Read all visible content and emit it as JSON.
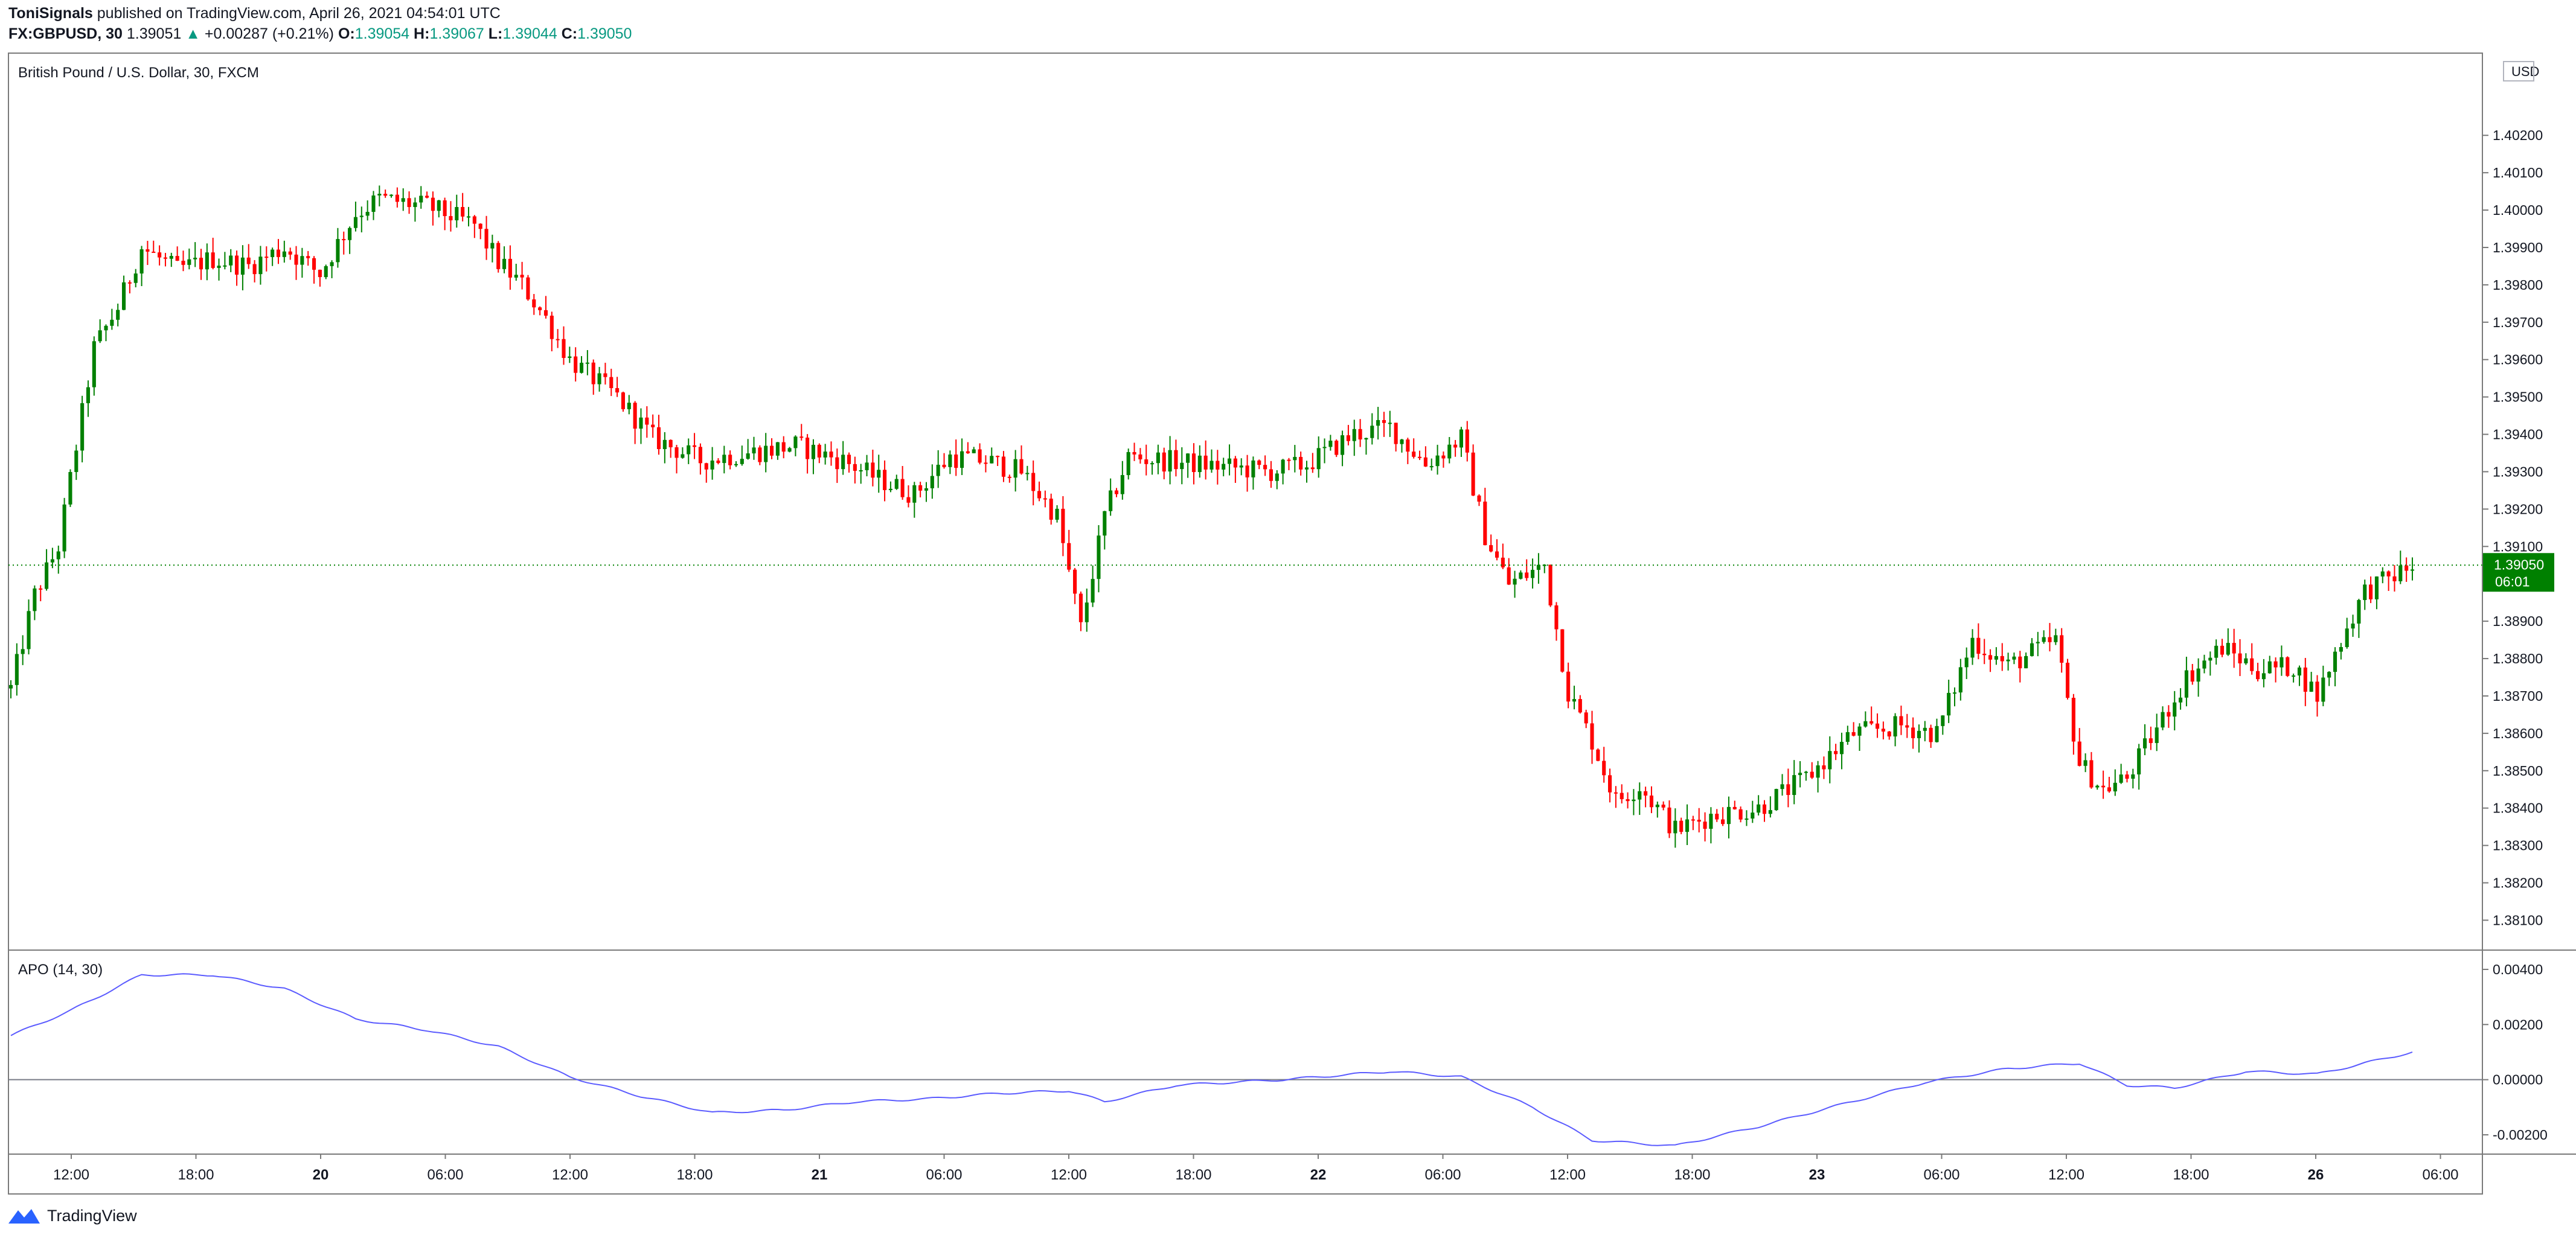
{
  "header": {
    "author": "ToniSignals",
    "published_text": "published on TradingView.com, April 26, 2021 04:54:01 UTC",
    "symbol": "FX:GBPUSD, 30",
    "last": "1.39051",
    "change_arrow": "▲",
    "change": "+0.00287 (+0.21%)",
    "o_label": "O:",
    "o_value": "1.39054",
    "h_label": "H:",
    "h_value": "1.39067",
    "l_label": "L:",
    "l_value": "1.39044",
    "c_label": "C:",
    "c_value": "1.39050"
  },
  "footer": {
    "brand": "TradingView",
    "logo_icon": "tradingview-logo-icon"
  },
  "colors": {
    "up": "#008000",
    "down": "#ff0000",
    "apo_line": "#5b5bff",
    "price_tag": "#008000",
    "price_line": "#008000"
  },
  "chart_data": [
    {
      "type": "candlestick",
      "title": "British Pound / U.S. Dollar, 30, FXCM",
      "currency_label": "USD",
      "last_price_label": "1.39050",
      "countdown": "06:01",
      "last_price": 1.3905,
      "ylim": [
        1.3802,
        1.4042
      ],
      "yticks": [
        "1.40200",
        "1.40100",
        "1.40000",
        "1.39900",
        "1.39800",
        "1.39700",
        "1.39600",
        "1.39500",
        "1.39400",
        "1.39300",
        "1.39200",
        "1.39100",
        "1.38900",
        "1.38800",
        "1.38700",
        "1.38600",
        "1.38500",
        "1.38400",
        "1.38300",
        "1.38200",
        "1.38100"
      ],
      "xlabels": [
        "12:00",
        "18:00",
        "20",
        "06:00",
        "12:00",
        "18:00",
        "21",
        "06:00",
        "12:00",
        "18:00",
        "22",
        "06:00",
        "12:00",
        "18:00",
        "23",
        "06:00",
        "12:00",
        "18:00",
        "26",
        "06:00"
      ],
      "anchors": [
        [
          0,
          1.3872
        ],
        [
          4,
          1.3897
        ],
        [
          8,
          1.391
        ],
        [
          10,
          1.3928
        ],
        [
          14,
          1.3963
        ],
        [
          18,
          1.3974
        ],
        [
          22,
          1.399
        ],
        [
          28,
          1.3984
        ],
        [
          34,
          1.3987
        ],
        [
          40,
          1.3985
        ],
        [
          46,
          1.399
        ],
        [
          52,
          1.3983
        ],
        [
          58,
          1.3999
        ],
        [
          62,
          1.4003
        ],
        [
          70,
          1.4001
        ],
        [
          78,
          1.3996
        ],
        [
          82,
          1.3986
        ],
        [
          86,
          1.398
        ],
        [
          90,
          1.3971
        ],
        [
          94,
          1.396
        ],
        [
          102,
          1.395
        ],
        [
          108,
          1.3939
        ],
        [
          116,
          1.3933
        ],
        [
          124,
          1.3935
        ],
        [
          132,
          1.3937
        ],
        [
          140,
          1.3933
        ],
        [
          146,
          1.3928
        ],
        [
          152,
          1.3924
        ],
        [
          158,
          1.3934
        ],
        [
          164,
          1.3933
        ],
        [
          170,
          1.393
        ],
        [
          176,
          1.3918
        ],
        [
          180,
          1.3888
        ],
        [
          184,
          1.3918
        ],
        [
          188,
          1.3934
        ],
        [
          194,
          1.3933
        ],
        [
          200,
          1.3932
        ],
        [
          206,
          1.3931
        ],
        [
          212,
          1.393
        ],
        [
          218,
          1.3932
        ],
        [
          226,
          1.394
        ],
        [
          232,
          1.3942
        ],
        [
          238,
          1.3932
        ],
        [
          244,
          1.3939
        ],
        [
          248,
          1.3913
        ],
        [
          252,
          1.39
        ],
        [
          258,
          1.3905
        ],
        [
          262,
          1.3871
        ],
        [
          266,
          1.3858
        ],
        [
          270,
          1.3842
        ],
        [
          274,
          1.3846
        ],
        [
          280,
          1.3834
        ],
        [
          286,
          1.3838
        ],
        [
          294,
          1.384
        ],
        [
          302,
          1.3848
        ],
        [
          310,
          1.386
        ],
        [
          318,
          1.3862
        ],
        [
          324,
          1.386
        ],
        [
          330,
          1.3885
        ],
        [
          336,
          1.3878
        ],
        [
          344,
          1.3885
        ],
        [
          348,
          1.3852
        ],
        [
          352,
          1.3845
        ],
        [
          356,
          1.3848
        ],
        [
          362,
          1.3864
        ],
        [
          366,
          1.3875
        ],
        [
          372,
          1.3883
        ],
        [
          378,
          1.3877
        ],
        [
          384,
          1.3878
        ],
        [
          388,
          1.387
        ],
        [
          392,
          1.3885
        ],
        [
          396,
          1.3898
        ],
        [
          402,
          1.3903
        ],
        [
          404,
          1.3905
        ]
      ],
      "candle_count": 405,
      "volatility": 0.0006
    },
    {
      "type": "line",
      "title": "APO (14, 30)",
      "ylim": [
        -0.0027,
        0.0047
      ],
      "yticks": [
        "0.00400",
        "0.00200",
        "0.00000",
        "-0.00200"
      ],
      "zero_line": 0,
      "anchors": [
        [
          0,
          0.0016
        ],
        [
          10,
          0.0025
        ],
        [
          22,
          0.0038
        ],
        [
          34,
          0.0038
        ],
        [
          46,
          0.0033
        ],
        [
          58,
          0.0022
        ],
        [
          70,
          0.0018
        ],
        [
          82,
          0.0012
        ],
        [
          94,
          0.0001
        ],
        [
          106,
          -0.0006
        ],
        [
          118,
          -0.0012
        ],
        [
          130,
          -0.0011
        ],
        [
          142,
          -0.0008
        ],
        [
          154,
          -0.0007
        ],
        [
          166,
          -0.0005
        ],
        [
          178,
          -0.0004
        ],
        [
          184,
          -0.0008
        ],
        [
          196,
          -0.0002
        ],
        [
          214,
          0.0
        ],
        [
          232,
          0.0003
        ],
        [
          244,
          0.0001
        ],
        [
          256,
          -0.001
        ],
        [
          266,
          -0.0022
        ],
        [
          280,
          -0.0024
        ],
        [
          294,
          -0.0017
        ],
        [
          308,
          -0.0009
        ],
        [
          322,
          -0.0001
        ],
        [
          336,
          0.0004
        ],
        [
          348,
          0.0006
        ],
        [
          356,
          -0.0002
        ],
        [
          364,
          -0.0003
        ],
        [
          376,
          0.0003
        ],
        [
          388,
          0.0002
        ],
        [
          404,
          0.001
        ]
      ]
    }
  ]
}
